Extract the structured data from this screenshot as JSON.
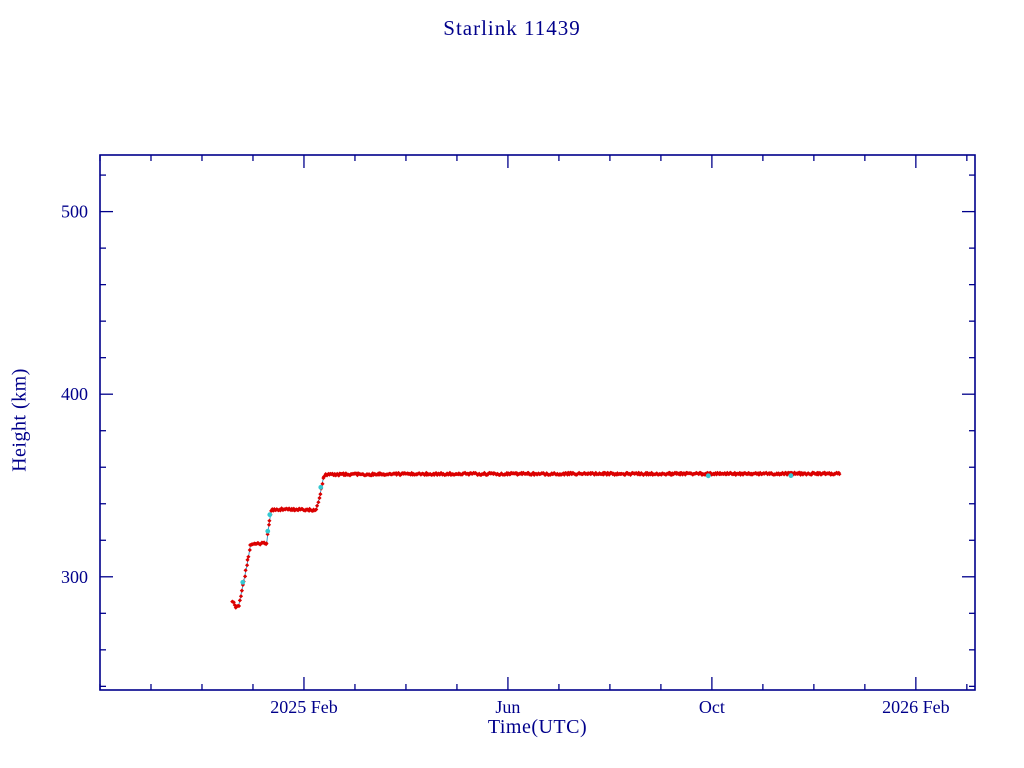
{
  "page": {
    "background": "#ffffff"
  },
  "chart_data": {
    "type": "line",
    "title": "Starlink 11439",
    "xlabel": "Time(UTC)",
    "ylabel": "Height (km)",
    "x_unit": "months since 2024-10-01 (UTC)",
    "xlim": [
      0,
      17.16
    ],
    "ylim": [
      238,
      531
    ],
    "grid": false,
    "legend": "none",
    "x_ticks": [
      {
        "pos": 4,
        "label": "2025 Feb"
      },
      {
        "pos": 8,
        "label": "Jun"
      },
      {
        "pos": 12,
        "label": "Oct"
      },
      {
        "pos": 16,
        "label": "2026 Feb"
      }
    ],
    "x_minor_step": 1,
    "y_ticks": [
      {
        "pos": 300,
        "label": "300"
      },
      {
        "pos": 400,
        "label": "400"
      },
      {
        "pos": 500,
        "label": "500"
      }
    ],
    "y_minor_step": 20,
    "colors": {
      "axis": "#00008B",
      "text": "#00008B",
      "series_red": "#DB0000",
      "series_cyan": "#35C8D2"
    },
    "series": [
      {
        "name": "height-red-markers",
        "type": "fuzzy-line",
        "color_key": "series_red",
        "noise_km": 0.6,
        "points": [
          [
            2.6,
            287.0
          ],
          [
            2.66,
            283.5
          ],
          [
            2.72,
            284.0
          ],
          [
            2.8,
            295.0
          ],
          [
            2.88,
            306.0
          ],
          [
            2.95,
            317.0
          ],
          [
            3.0,
            318.0
          ],
          [
            3.27,
            318.5
          ],
          [
            3.31,
            328.0
          ],
          [
            3.36,
            336.5
          ],
          [
            3.6,
            337.0
          ],
          [
            4.24,
            336.5
          ],
          [
            4.3,
            343.0
          ],
          [
            4.38,
            354.0
          ],
          [
            4.43,
            356.0
          ],
          [
            6.0,
            356.3
          ],
          [
            9.0,
            356.4
          ],
          [
            12.0,
            356.4
          ],
          [
            14.52,
            356.5
          ]
        ]
      },
      {
        "name": "height-cyan-dots",
        "type": "dots",
        "color_key": "series_cyan",
        "points": [
          [
            2.8,
            297.0
          ],
          [
            3.29,
            325.0
          ],
          [
            3.33,
            334.0
          ],
          [
            4.33,
            349.0
          ],
          [
            11.93,
            355.3
          ],
          [
            13.55,
            355.4
          ]
        ]
      }
    ]
  }
}
